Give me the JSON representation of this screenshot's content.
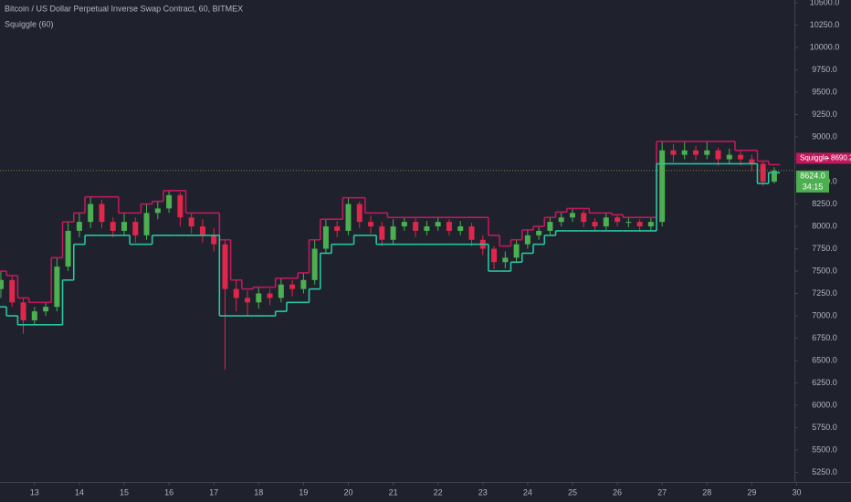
{
  "chart_data": {
    "type": "candlestick",
    "title": "Bitcoin / US Dollar Perpetual Inverse Swap Contract, 60, BITMEX",
    "indicator_label": "Squiggle (60)",
    "up_color": "#4caf50",
    "down_color": "#e0264a",
    "background": "#1f222d",
    "xlim": [
      12.23,
      29.95
    ],
    "ylim": [
      5143,
      10531
    ],
    "xticks": [
      13,
      14,
      15,
      16,
      17,
      18,
      19,
      20,
      21,
      22,
      23,
      24,
      25,
      26,
      27,
      28,
      29,
      30
    ],
    "yticks": [
      {
        "value": 5250,
        "label": "5250.0"
      },
      {
        "value": 5500,
        "label": "5500.0"
      },
      {
        "value": 5750,
        "label": "5750.0"
      },
      {
        "value": 6000,
        "label": "6000.0"
      },
      {
        "value": 6250,
        "label": "6250.0"
      },
      {
        "value": 6500,
        "label": "6500.0"
      },
      {
        "value": 6750,
        "label": "6750.0"
      },
      {
        "value": 7000,
        "label": "7000.0"
      },
      {
        "value": 7250,
        "label": "7250.0"
      },
      {
        "value": 7500,
        "label": "7500.0"
      },
      {
        "value": 7750,
        "label": "7750.0"
      },
      {
        "value": 8000,
        "label": "8000.0"
      },
      {
        "value": 8250,
        "label": "8250.0"
      },
      {
        "value": 8500,
        "label": "8500.0"
      },
      {
        "value": 8750,
        "label": "8750.0"
      },
      {
        "value": 9000,
        "label": "9000.0"
      },
      {
        "value": 9250,
        "label": "9250.0"
      },
      {
        "value": 9500,
        "label": "9500.0"
      },
      {
        "value": 9750,
        "label": "9750.0"
      },
      {
        "value": 10000,
        "label": "10000.0"
      },
      {
        "value": 10250,
        "label": "10250.0"
      },
      {
        "value": 10500,
        "label": "10500.0"
      }
    ],
    "x": [
      12.25,
      12.5,
      12.75,
      13,
      13.25,
      13.5,
      13.75,
      14,
      14.25,
      14.5,
      14.75,
      15,
      15.25,
      15.5,
      15.75,
      16,
      16.25,
      16.5,
      16.75,
      17,
      17.25,
      17.5,
      17.75,
      18,
      18.25,
      18.5,
      18.75,
      19,
      19.25,
      19.5,
      19.75,
      20,
      20.25,
      20.5,
      20.75,
      21,
      21.25,
      21.5,
      21.75,
      22,
      22.25,
      22.5,
      22.75,
      23,
      23.25,
      23.5,
      23.75,
      24,
      24.25,
      24.5,
      24.75,
      25,
      25.25,
      25.5,
      25.75,
      26,
      26.25,
      26.5,
      26.75,
      27,
      27.25,
      27.5,
      27.75,
      28,
      28.25,
      28.5,
      28.75,
      29,
      29.25,
      29.5
    ],
    "open": [
      7300,
      7400,
      7150,
      6950,
      7050,
      7100,
      7550,
      7950,
      8050,
      8250,
      8050,
      7950,
      8050,
      7900,
      8150,
      8200,
      8350,
      8100,
      8000,
      7900,
      7800,
      7300,
      7200,
      7150,
      7250,
      7200,
      7350,
      7300,
      7400,
      7750,
      8000,
      7950,
      8250,
      8050,
      8000,
      7850,
      8000,
      8050,
      7950,
      8000,
      8050,
      7950,
      8000,
      7850,
      7750,
      7600,
      7650,
      7800,
      7900,
      7950,
      8050,
      8100,
      8150,
      8050,
      8000,
      8100,
      8050,
      8050,
      8000,
      8050,
      8850,
      8800,
      8850,
      8800,
      8850,
      8750,
      8800,
      8750,
      8700,
      8500
    ],
    "high": [
      7500,
      7450,
      7200,
      7100,
      7150,
      7650,
      8050,
      8150,
      8330,
      8300,
      8100,
      8150,
      8100,
      8250,
      8280,
      8400,
      8380,
      8150,
      8080,
      7980,
      7850,
      7400,
      7280,
      7320,
      7300,
      7420,
      7400,
      7480,
      7850,
      8080,
      8060,
      8320,
      8280,
      8120,
      8050,
      8080,
      8100,
      8090,
      8060,
      8110,
      8080,
      8060,
      8040,
      7900,
      7780,
      7720,
      7850,
      7960,
      8000,
      8100,
      8160,
      8200,
      8180,
      8090,
      8150,
      8130,
      8100,
      8080,
      8100,
      8950,
      8920,
      8950,
      8900,
      8950,
      8880,
      8870,
      8850,
      8800,
      8730,
      8660
    ],
    "low": [
      7200,
      7100,
      6800,
      6900,
      7000,
      7050,
      7500,
      7880,
      7980,
      7980,
      7880,
      7900,
      7820,
      7850,
      8080,
      8150,
      8000,
      7920,
      7820,
      7720,
      6400,
      7050,
      7000,
      7080,
      7120,
      7150,
      7220,
      7250,
      7350,
      7700,
      7880,
      7900,
      7980,
      7920,
      7780,
      7800,
      7950,
      7880,
      7900,
      7950,
      7900,
      7900,
      7780,
      7680,
      7520,
      7530,
      7600,
      7750,
      7850,
      7900,
      8000,
      8050,
      7990,
      7950,
      7960,
      8000,
      7990,
      7940,
      7950,
      8000,
      8720,
      8750,
      8740,
      8750,
      8680,
      8700,
      8680,
      8620,
      8450,
      8480
    ],
    "close": [
      7400,
      7150,
      6950,
      7050,
      7100,
      7550,
      7950,
      8050,
      8250,
      8050,
      7950,
      8050,
      7900,
      8150,
      8200,
      8350,
      8100,
      8000,
      7900,
      7800,
      7300,
      7200,
      7150,
      7250,
      7200,
      7350,
      7300,
      7400,
      7750,
      8000,
      7950,
      8250,
      8050,
      8000,
      7850,
      8000,
      8050,
      7950,
      8000,
      8050,
      7950,
      8000,
      7850,
      7750,
      7600,
      7650,
      7800,
      7900,
      7950,
      8050,
      8100,
      8150,
      8050,
      8000,
      8100,
      8050,
      8050,
      8000,
      8050,
      8850,
      8800,
      8850,
      8800,
      8850,
      8750,
      8800,
      8750,
      8700,
      8500,
      8624
    ],
    "series": [
      {
        "name": "Squiggle",
        "color": "#c2185b",
        "values": [
          7500,
          7450,
          7200,
          7150,
          7150,
          7650,
          8050,
          8150,
          8330,
          8330,
          8330,
          8150,
          8150,
          8250,
          8280,
          8400,
          8400,
          8150,
          8150,
          8150,
          7850,
          7400,
          7300,
          7320,
          7320,
          7420,
          7420,
          7480,
          7850,
          8080,
          8080,
          8320,
          8320,
          8150,
          8150,
          8100,
          8100,
          8100,
          8100,
          8100,
          8100,
          8100,
          8100,
          8100,
          7900,
          7780,
          7850,
          7960,
          8000,
          8100,
          8160,
          8200,
          8200,
          8150,
          8150,
          8130,
          8100,
          8100,
          8100,
          8950,
          8950,
          8950,
          8950,
          8950,
          8950,
          8950,
          8850,
          8850,
          8730,
          8690.2
        ]
      },
      {
        "color": "#26c6a0",
        "values": [
          7100,
          7000,
          6900,
          6900,
          6900,
          6900,
          7400,
          7800,
          7900,
          7900,
          7900,
          7900,
          7800,
          7800,
          7900,
          7900,
          7900,
          7900,
          7900,
          7900,
          7000,
          7000,
          7000,
          7000,
          7000,
          7050,
          7150,
          7150,
          7300,
          7700,
          7800,
          7800,
          7900,
          7900,
          7800,
          7800,
          7800,
          7800,
          7800,
          7800,
          7800,
          7800,
          7800,
          7800,
          7500,
          7500,
          7600,
          7700,
          7800,
          7900,
          7950,
          7950,
          7950,
          7950,
          7950,
          7950,
          7950,
          7950,
          7950,
          8700,
          8700,
          8700,
          8700,
          8700,
          8700,
          8700,
          8700,
          8700,
          8480,
          8600
        ]
      }
    ],
    "last_price": {
      "value": 8624,
      "label": "8624.0"
    },
    "countdown": "34:15"
  }
}
